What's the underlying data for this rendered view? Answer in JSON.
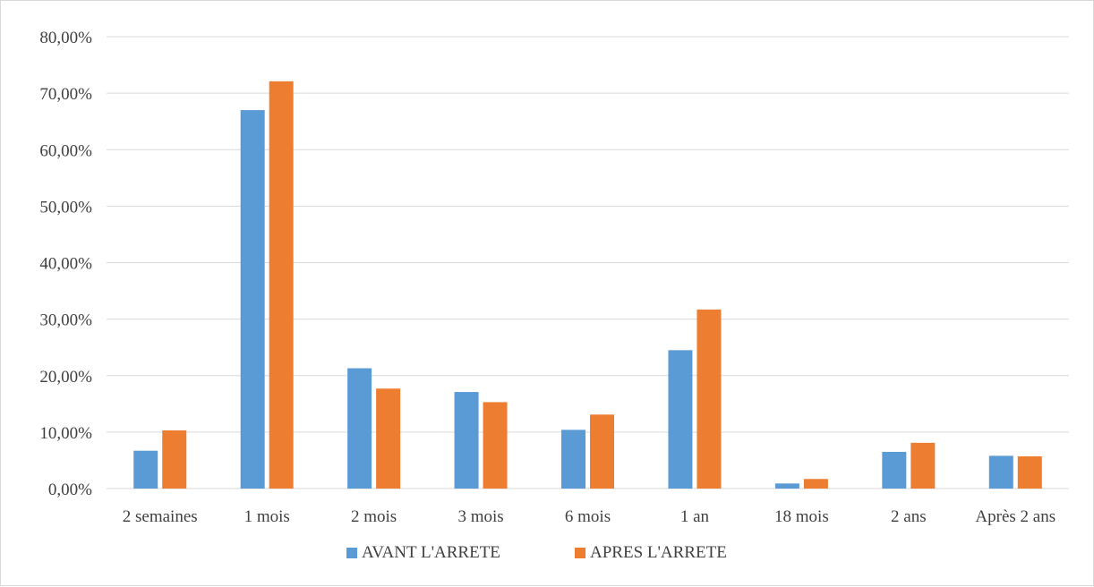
{
  "chart_data": {
    "type": "bar",
    "categories": [
      "2 semaines",
      "1 mois",
      "2 mois",
      "3 mois",
      "6 mois",
      "1 an",
      "18 mois",
      "2 ans",
      "Après 2 ans"
    ],
    "series": [
      {
        "name": "AVANT L'ARRETE",
        "color": "#5b9bd5",
        "values": [
          6.7,
          67.0,
          21.3,
          17.1,
          10.4,
          24.5,
          0.9,
          6.5,
          5.8
        ]
      },
      {
        "name": "APRES L'ARRETE",
        "color": "#ed7d31",
        "values": [
          10.3,
          72.1,
          17.7,
          15.3,
          13.1,
          31.7,
          1.7,
          8.1,
          5.7
        ]
      }
    ],
    "ylim": [
      0,
      80
    ],
    "yticks": [
      "0,00%",
      "10,00%",
      "20,00%",
      "30,00%",
      "40,00%",
      "50,00%",
      "60,00%",
      "70,00%",
      "80,00%"
    ],
    "grid": true,
    "gridline_color": "#d9d9d9",
    "legend_position": "bottom"
  }
}
